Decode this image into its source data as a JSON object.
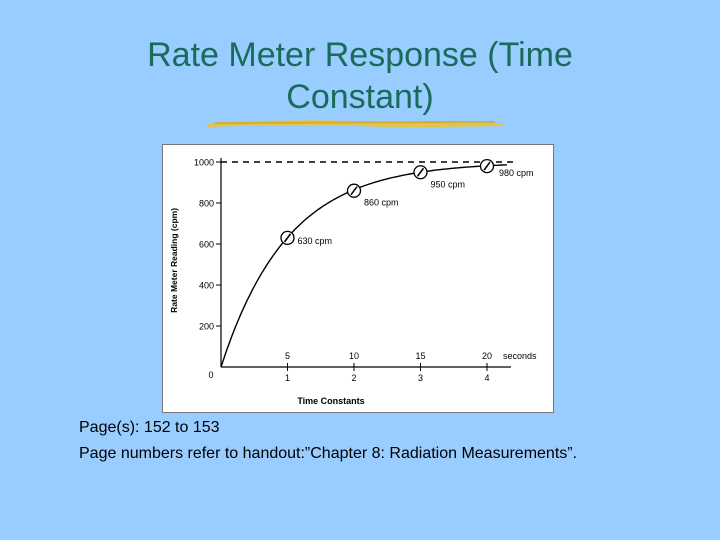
{
  "slide": {
    "title_line1": "Rate Meter Response (Time",
    "title_line2": "Constant)",
    "caption_line1": "Page(s): 152 to 153",
    "caption_line2": "Page numbers refer to handout:”Chapter 8: Radiation Measurements”.",
    "accent_color": "#1a6b5a",
    "background_color": "#99ccff",
    "underline_color": "#e8c23a"
  },
  "chart_data": {
    "type": "line",
    "ylabel": "Rate Meter Reading (cpm)",
    "xlabel": "Time Constants",
    "ylim": [
      0,
      1000
    ],
    "xlim": [
      0,
      4.3
    ],
    "y_ticks": [
      "1000",
      "800",
      "600",
      "400",
      "200"
    ],
    "x_ticks": [
      "1",
      "2",
      "3",
      "4"
    ],
    "x_origin_label": "0",
    "seconds_ticks": [
      "5",
      "10",
      "15",
      "20"
    ],
    "seconds_label": "seconds",
    "asymptote": 1000,
    "points": [
      {
        "x": 1,
        "y": 630,
        "label": "630 cpm"
      },
      {
        "x": 2,
        "y": 860,
        "label": "860 cpm"
      },
      {
        "x": 3,
        "y": 950,
        "label": "950 cpm"
      },
      {
        "x": 4,
        "y": 980,
        "label": "980 cpm"
      }
    ],
    "curve_color": "#000000"
  }
}
